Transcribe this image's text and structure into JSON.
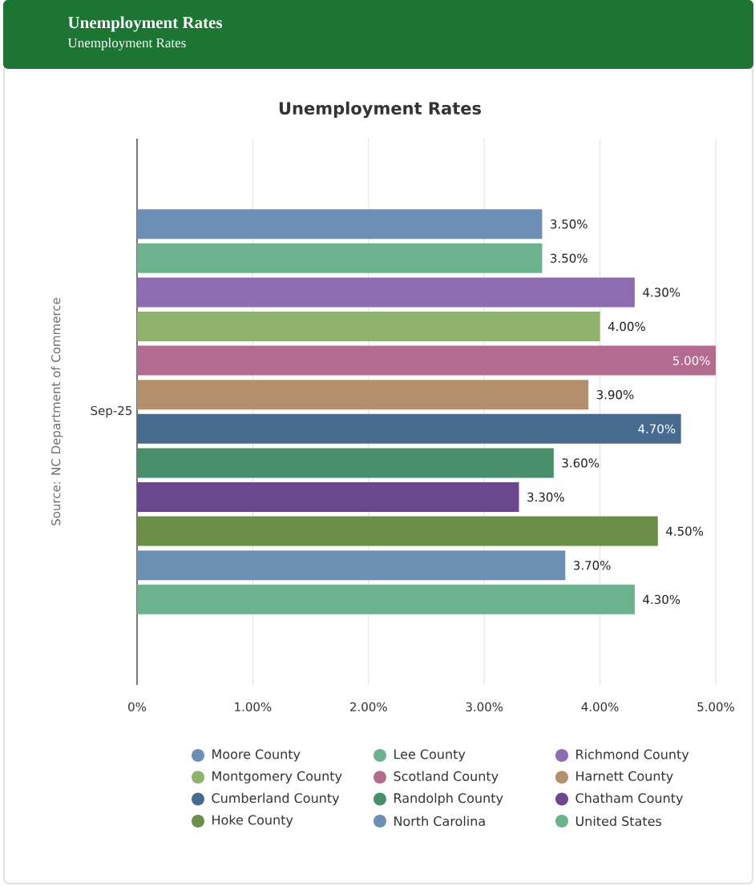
{
  "chart_data": {
    "type": "bar",
    "orientation": "horizontal",
    "title": "Unemployment Rates",
    "subtitle": "Unemployment Rates",
    "annotations": [
      "Unemployment Rates",
      "Source: NC Department of Commerce"
    ],
    "categories": [
      "Sep-25"
    ],
    "series": [
      {
        "name": "Moore County",
        "color": "#6b8fb5",
        "values": [
          3.5
        ],
        "value_labels": [
          "3.50%"
        ]
      },
      {
        "name": "Lee County",
        "color": "#6bb38e",
        "values": [
          3.5
        ],
        "value_labels": [
          "3.50%"
        ]
      },
      {
        "name": "Richmond County",
        "color": "#8f6bb3",
        "values": [
          4.3
        ],
        "value_labels": [
          "4.30%"
        ]
      },
      {
        "name": "Montgomery County",
        "color": "#8fb36b",
        "values": [
          4.0
        ],
        "value_labels": [
          "4.00%"
        ]
      },
      {
        "name": "Scotland County",
        "color": "#b36b8f",
        "values": [
          5.0
        ],
        "value_labels": [
          "5.00%"
        ]
      },
      {
        "name": "Harnett County",
        "color": "#b38f6b",
        "values": [
          3.9
        ],
        "value_labels": [
          "3.90%"
        ]
      },
      {
        "name": "Cumberland County",
        "color": "#476b8f",
        "values": [
          4.7
        ],
        "value_labels": [
          "4.70%"
        ]
      },
      {
        "name": "Randolph County",
        "color": "#478f6b",
        "values": [
          3.6
        ],
        "value_labels": [
          "3.60%"
        ]
      },
      {
        "name": "Chatham County",
        "color": "#6b478f",
        "values": [
          3.3
        ],
        "value_labels": [
          "3.30%"
        ]
      },
      {
        "name": "Hoke County",
        "color": "#6b8f47",
        "values": [
          4.5
        ],
        "value_labels": [
          "4.50%"
        ]
      },
      {
        "name": "North Carolina",
        "color": "#6b8fb5",
        "values": [
          3.7
        ],
        "value_labels": [
          "3.70%"
        ]
      },
      {
        "name": "United States",
        "color": "#6bb38e",
        "values": [
          4.3
        ],
        "value_labels": [
          "4.30%"
        ]
      }
    ],
    "xlim": [
      0,
      5
    ],
    "xticks": [
      {
        "value": 0,
        "label": "0%"
      },
      {
        "value": 1,
        "label": "1.00%"
      },
      {
        "value": 2,
        "label": "2.00%"
      },
      {
        "value": 3,
        "label": "3.00%"
      },
      {
        "value": 4,
        "label": "4.00%"
      },
      {
        "value": 5,
        "label": "5.00%"
      }
    ],
    "grid": "x",
    "legend": "bottom"
  }
}
